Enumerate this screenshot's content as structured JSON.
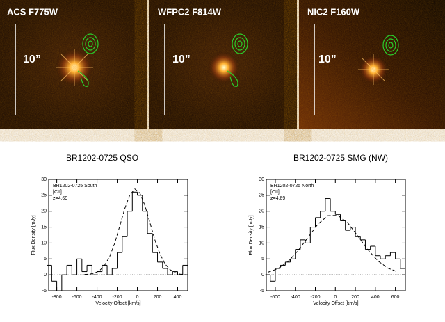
{
  "images": [
    {
      "label": "ACS F775W",
      "scale": "10”"
    },
    {
      "label": "WFPC2 F814W",
      "scale": "10”"
    },
    {
      "label": "NIC2 F160W",
      "scale": "10”"
    }
  ],
  "chart_data": [
    {
      "type": "line",
      "title": "BR1202-0725 QSO",
      "xlabel": "Velocity Offset [km/s]",
      "ylabel": "Flux Density [mJy]",
      "annotations": [
        "BR1202-0725 South",
        "[CII]",
        "z=4.69"
      ],
      "xlim": [
        -880,
        500
      ],
      "ylim": [
        -5,
        30
      ],
      "xticks": [
        -800,
        -600,
        -400,
        -200,
        0,
        200,
        400
      ],
      "yticks": [
        -5,
        0,
        5,
        10,
        15,
        20,
        25,
        30
      ],
      "series": [
        {
          "style": "step",
          "color": "#000000",
          "x": [
            -875,
            -825,
            -775,
            -725,
            -675,
            -625,
            -575,
            -525,
            -475,
            -425,
            -375,
            -325,
            -275,
            -225,
            -175,
            -125,
            -75,
            -25,
            25,
            75,
            125,
            175,
            225,
            275,
            325,
            375,
            425,
            475
          ],
          "values": [
            3,
            -2,
            -5,
            0,
            3,
            0,
            5,
            1,
            3,
            0,
            1,
            3,
            0,
            2,
            7,
            12,
            20,
            26,
            25,
            20,
            13,
            7,
            4,
            2,
            0,
            1,
            0,
            3
          ]
        },
        {
          "style": "dashed",
          "color": "#000000",
          "x": [
            -525,
            -475,
            -425,
            -375,
            -325,
            -275,
            -225,
            -175,
            -125,
            -75,
            -25,
            25,
            75,
            125,
            175,
            225,
            275,
            325,
            375,
            425,
            475
          ],
          "values": [
            0.1,
            0.2,
            0.5,
            1.3,
            3.0,
            5.7,
            9.9,
            15.3,
            20.8,
            25.1,
            27,
            25.7,
            21.8,
            16.4,
            10.9,
            6.5,
            3.4,
            1.6,
            0.7,
            0.2,
            0.1
          ]
        }
      ]
    },
    {
      "type": "line",
      "title": "BR1202-0725 SMG (NW)",
      "xlabel": "Velocity Offset [km/s]",
      "ylabel": "Flux Density [mJy]",
      "annotations": [
        "BR1202-0725 North",
        "[CII]",
        "z=4.69"
      ],
      "xlim": [
        -690,
        700
      ],
      "ylim": [
        -5,
        30
      ],
      "xticks": [
        -600,
        -400,
        -200,
        0,
        200,
        400,
        600
      ],
      "yticks": [
        -5,
        0,
        5,
        10,
        15,
        20,
        25,
        30
      ],
      "series": [
        {
          "style": "step",
          "color": "#000000",
          "x": [
            -675,
            -625,
            -575,
            -525,
            -475,
            -425,
            -375,
            -325,
            -275,
            -225,
            -175,
            -125,
            -75,
            -25,
            25,
            75,
            125,
            175,
            225,
            275,
            325,
            375,
            425,
            475,
            525,
            575,
            625,
            675
          ],
          "values": [
            0,
            -2,
            2,
            3,
            4,
            5,
            8,
            11,
            10,
            15,
            18,
            20,
            24,
            20,
            19,
            17,
            14,
            15,
            12,
            11,
            8,
            9,
            6,
            5,
            6,
            7,
            5,
            2
          ]
        },
        {
          "style": "dashed",
          "color": "#000000",
          "x": [
            -675,
            -575,
            -475,
            -375,
            -275,
            -175,
            -75,
            25,
            125,
            225,
            325,
            425,
            525,
            625
          ],
          "values": [
            0.8,
            1.9,
            4.1,
            7.5,
            11.7,
            15.9,
            18.6,
            18.7,
            16.3,
            12.2,
            7.9,
            4.4,
            2.1,
            0.9
          ]
        }
      ]
    }
  ]
}
